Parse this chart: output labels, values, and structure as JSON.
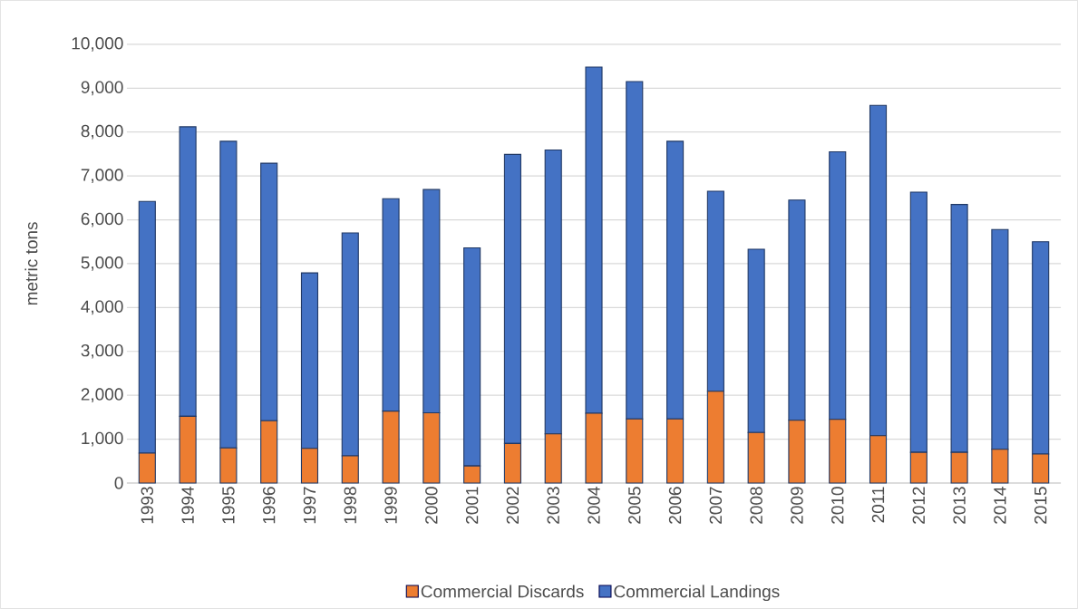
{
  "chart_data": {
    "type": "bar",
    "stacked": true,
    "ylabel": "metric tons",
    "categories": [
      "1993",
      "1994",
      "1995",
      "1996",
      "1997",
      "1998",
      "1999",
      "2000",
      "2001",
      "2002",
      "2003",
      "2004",
      "2005",
      "2006",
      "2007",
      "2008",
      "2009",
      "2010",
      "2011",
      "2012",
      "2013",
      "2014",
      "2015"
    ],
    "series": [
      {
        "name": "Commercial Discards",
        "color": "#ed7d31",
        "values": [
          680,
          1520,
          800,
          1420,
          790,
          620,
          1640,
          1600,
          390,
          900,
          1120,
          1590,
          1460,
          1460,
          2090,
          1150,
          1430,
          1450,
          1080,
          700,
          700,
          770,
          660
        ]
      },
      {
        "name": "Commercial Landings",
        "color": "#4472c4",
        "values": [
          5740,
          6600,
          6990,
          5870,
          4000,
          5080,
          4840,
          5090,
          4970,
          6590,
          6470,
          7890,
          7690,
          6330,
          4560,
          4180,
          5020,
          6100,
          7530,
          5930,
          5650,
          5010,
          4840
        ]
      }
    ],
    "ylim": [
      0,
      10000
    ],
    "yticks": [
      0,
      {
        "value": 1000,
        "label": "1,000"
      },
      {
        "value": 2000,
        "label": "2,000"
      },
      {
        "value": 3000,
        "label": "3,000"
      },
      {
        "value": 4000,
        "label": "4,000"
      },
      {
        "value": 5000,
        "label": "5,000"
      },
      {
        "value": 6000,
        "label": "6,000"
      },
      {
        "value": 7000,
        "label": "7,000"
      },
      {
        "value": 8000,
        "label": "8,000"
      },
      {
        "value": 9000,
        "label": "9,000"
      },
      {
        "value": 10000,
        "label": "10,000"
      }
    ],
    "grid": "y",
    "legend": "bottom"
  }
}
